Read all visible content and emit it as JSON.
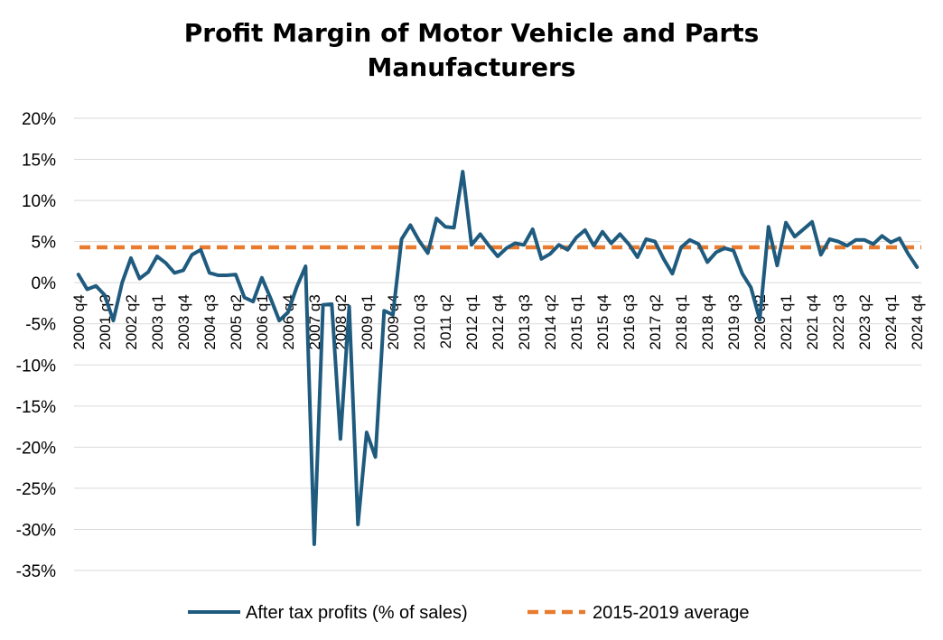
{
  "chart_data": {
    "type": "line",
    "title_lines": [
      "Profit Margin of Motor Vehicle and Parts",
      "Manufacturers"
    ],
    "ylim": [
      -35,
      20
    ],
    "yticks": [
      20,
      15,
      10,
      5,
      0,
      -5,
      -10,
      -15,
      -20,
      -25,
      -30,
      -35
    ],
    "ytick_labels": [
      "20%",
      "15%",
      "10%",
      "5%",
      "0%",
      "-5%",
      "-10%",
      "-15%",
      "-20%",
      "-25%",
      "-30%",
      "-35%"
    ],
    "xtick_labels": [
      "2000 q4",
      "2001 q3",
      "2002 q2",
      "2003 q1",
      "2003 q4",
      "2004 q3",
      "2005 q2",
      "2006 q1",
      "2006 q4",
      "2007 q3",
      "2008 q2",
      "2009 q1",
      "2009 q4",
      "2010 q3",
      "2011 q2",
      "2012 q1",
      "2012 q4",
      "2013 q3",
      "2014 q2",
      "2015 q1",
      "2015 q4",
      "2016 q3",
      "2017 q2",
      "2018 q1",
      "2018 q4",
      "2019 q3",
      "2020 q2",
      "2021 q1",
      "2021 q4",
      "2022 q3",
      "2023 q2",
      "2024 q1",
      "2024 q4"
    ],
    "xtick_step": 3,
    "grid": true,
    "legend_position": "bottom",
    "series": [
      {
        "name": "After tax profits (% of sales)",
        "color": "#1f5b7e",
        "style": "solid",
        "values": [
          1.0,
          -0.8,
          -0.4,
          -1.5,
          -4.6,
          0.0,
          3.0,
          0.5,
          1.3,
          3.2,
          2.4,
          1.2,
          1.5,
          3.4,
          4.0,
          1.2,
          0.9,
          0.9,
          1.0,
          -1.8,
          -2.3,
          0.6,
          -1.9,
          -4.6,
          -3.6,
          -0.5,
          2.0,
          -31.8,
          -2.7,
          -2.6,
          -19.0,
          -2.9,
          -29.4,
          -18.2,
          -21.2,
          -3.4,
          -3.9,
          5.3,
          7.0,
          5.1,
          3.6,
          7.8,
          6.8,
          6.7,
          13.5,
          4.6,
          5.9,
          4.5,
          3.2,
          4.2,
          4.8,
          4.6,
          6.5,
          2.9,
          3.5,
          4.6,
          4.0,
          5.5,
          6.4,
          4.5,
          6.2,
          4.8,
          5.9,
          4.7,
          3.1,
          5.3,
          5.0,
          2.9,
          1.1,
          4.3,
          5.2,
          4.7,
          2.5,
          3.7,
          4.2,
          3.9,
          1.1,
          -0.6,
          -4.5,
          6.8,
          2.1,
          7.3,
          5.6,
          6.5,
          7.4,
          3.4,
          5.3,
          5.0,
          4.5,
          5.2,
          5.2,
          4.7,
          5.7,
          4.9,
          5.4,
          3.5,
          1.9
        ]
      },
      {
        "name": "2015-2019 average",
        "color": "#e87b2e",
        "style": "dashed",
        "values": [
          4.3
        ]
      }
    ]
  },
  "legend": {
    "items": [
      "After tax profits (% of sales)",
      "2015-2019 average"
    ]
  }
}
